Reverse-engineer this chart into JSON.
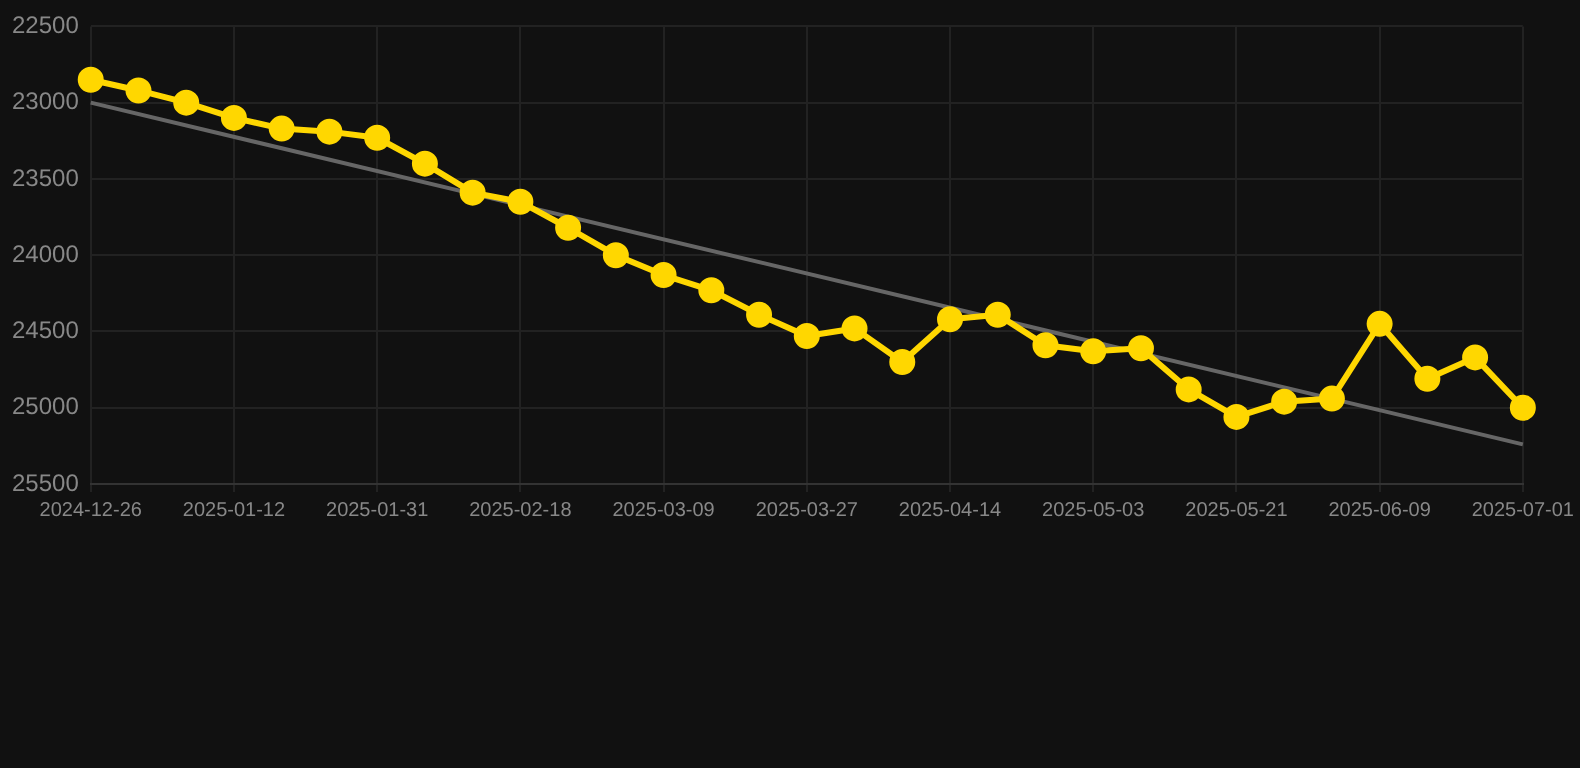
{
  "chart_data": {
    "type": "line",
    "categories": [
      "2024-12-26",
      null,
      null,
      "2025-01-12",
      null,
      null,
      "2025-01-31",
      null,
      null,
      "2025-02-18",
      null,
      null,
      "2025-03-09",
      null,
      null,
      "2025-03-27",
      null,
      null,
      "2025-04-14",
      null,
      null,
      "2025-05-03",
      null,
      null,
      "2025-05-21",
      null,
      null,
      "2025-06-09",
      null,
      null,
      "2025-07-01"
    ],
    "series": [
      {
        "color": "#ffd700",
        "marker": "circle",
        "values": [
          22850,
          22920,
          23000,
          23100,
          23170,
          23190,
          23230,
          23400,
          23590,
          23650,
          23820,
          24000,
          24130,
          24230,
          24390,
          24530,
          24480,
          24700,
          24420,
          24390,
          24590,
          24630,
          24610,
          24880,
          25060,
          24960,
          24940,
          24450,
          24810,
          24670,
          25000
        ]
      },
      {
        "color": "#666666",
        "marker": "none",
        "values": [
          23000,
          null,
          null,
          null,
          null,
          null,
          null,
          null,
          null,
          null,
          null,
          null,
          null,
          null,
          null,
          null,
          null,
          null,
          null,
          null,
          null,
          null,
          null,
          null,
          null,
          null,
          null,
          null,
          null,
          null,
          25240
        ]
      }
    ],
    "ylim": [
      25500,
      22500
    ],
    "yticks": [
      22500,
      23000,
      23500,
      24000,
      24500,
      25000,
      25500
    ],
    "grid": true,
    "legend": false
  }
}
